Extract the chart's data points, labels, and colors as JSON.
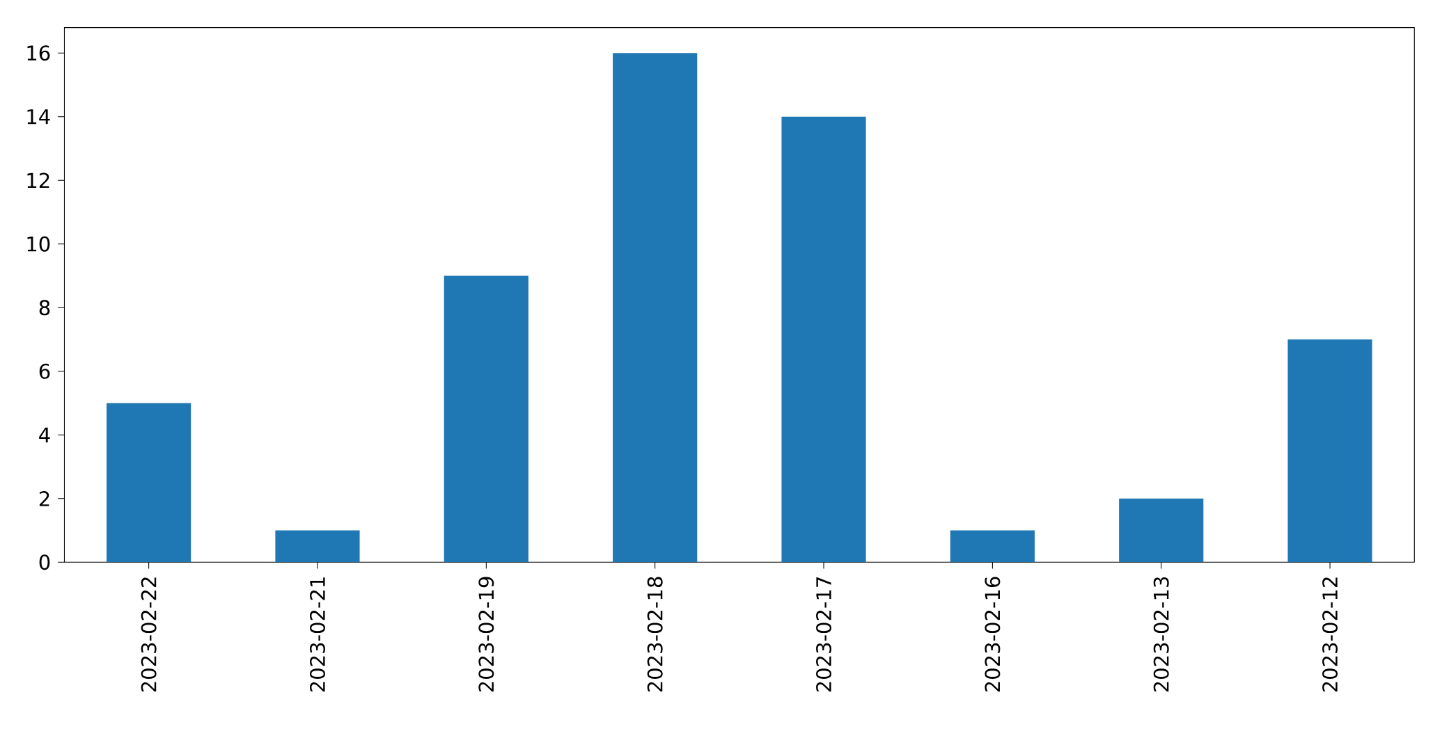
{
  "chart_data": {
    "type": "bar",
    "categories": [
      "2023-02-22",
      "2023-02-21",
      "2023-02-19",
      "2023-02-18",
      "2023-02-17",
      "2023-02-16",
      "2023-02-13",
      "2023-02-12"
    ],
    "values": [
      5,
      1,
      9,
      16,
      14,
      1,
      2,
      7
    ],
    "color": "#1f77b4",
    "ylim": [
      0,
      16.8
    ],
    "yticks": [
      0,
      2,
      4,
      6,
      8,
      10,
      12,
      14,
      16
    ]
  }
}
